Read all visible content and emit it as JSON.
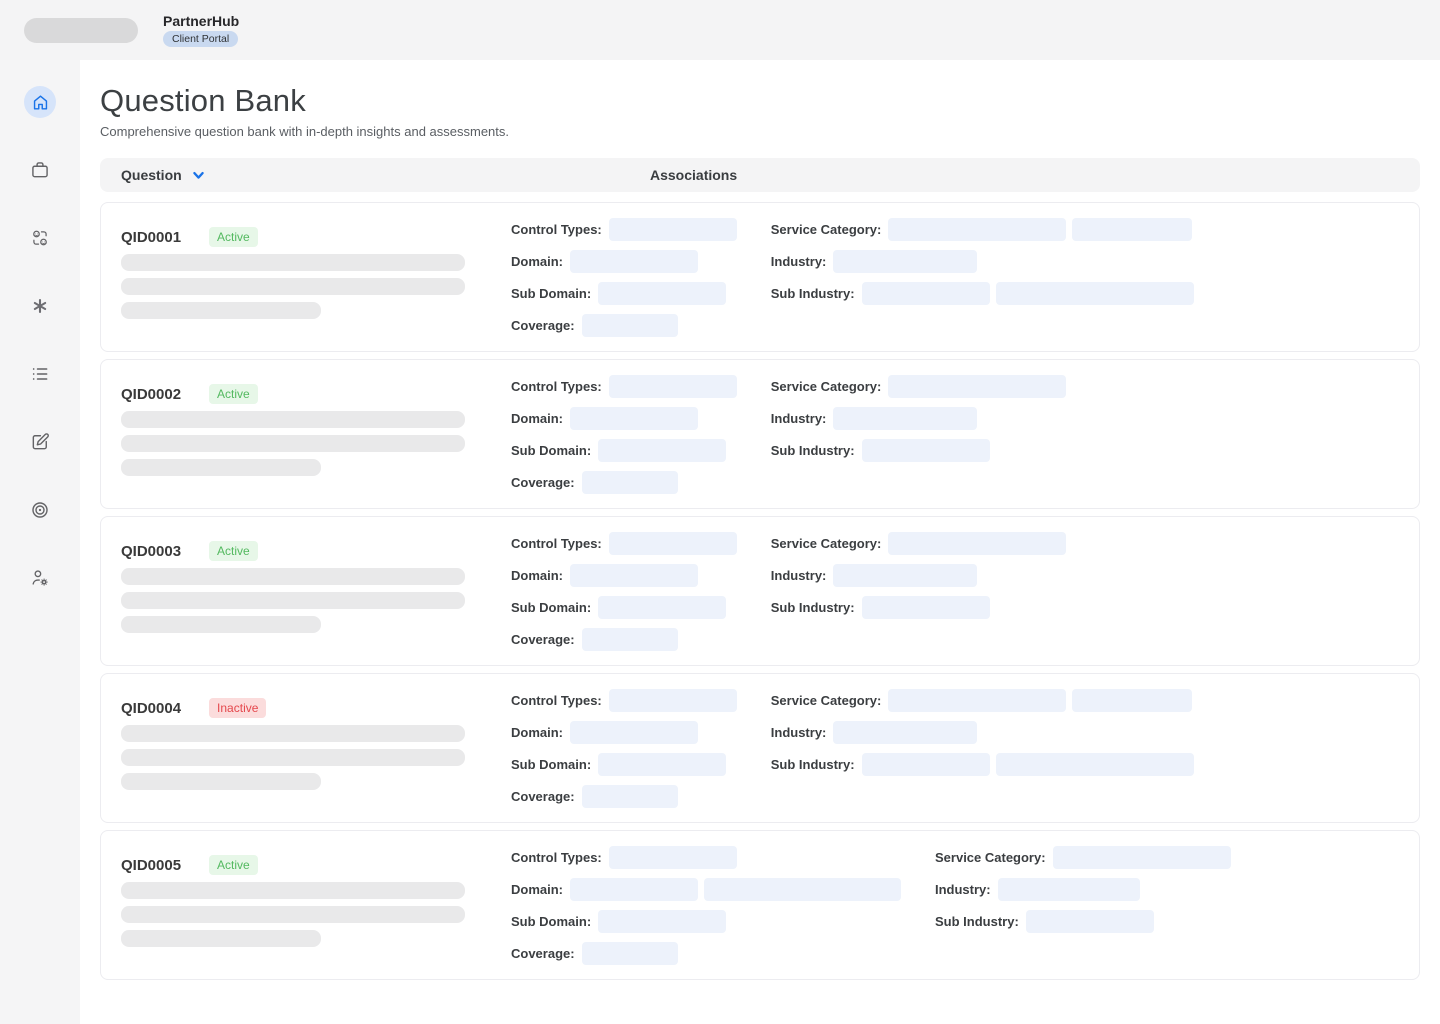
{
  "topbar": {
    "app_name": "PartnerHub",
    "portal_badge": "Client Portal"
  },
  "sidebar": {
    "items": [
      {
        "icon": "home",
        "active": true
      },
      {
        "icon": "briefcase",
        "active": false
      },
      {
        "icon": "user-exchange",
        "active": false
      },
      {
        "icon": "asterisk",
        "active": false
      },
      {
        "icon": "list",
        "active": false
      },
      {
        "icon": "compose",
        "active": false
      },
      {
        "icon": "target",
        "active": false
      },
      {
        "icon": "user-settings",
        "active": false
      }
    ]
  },
  "page": {
    "title": "Question Bank",
    "subtitle": "Comprehensive question bank with in-depth insights and assessments."
  },
  "list_header": {
    "question_label": "Question",
    "associations_label": "Associations"
  },
  "field_labels": {
    "control_types": "Control Types:",
    "domain": "Domain:",
    "sub_domain": "Sub Domain:",
    "coverage": "Coverage:",
    "service_category": "Service Category:",
    "industry": "Industry:",
    "sub_industry": "Sub Industry:"
  },
  "colors": {
    "accent_blue": "#1a73e8",
    "active_green": "#53b95f",
    "active_bg": "#e7f7e8",
    "inactive_red": "#e5484d",
    "inactive_bg": "#fbdcdc",
    "chip_bg": "#edf2fb"
  },
  "questions": [
    {
      "id": "QID0001",
      "status": "Active",
      "skeleton_bars": [
        344,
        344,
        200
      ],
      "associations": {
        "col1": [
          {
            "field": "control_types",
            "chips": [
              128
            ]
          },
          {
            "field": "domain",
            "chips": [
              128
            ]
          },
          {
            "field": "sub_domain",
            "chips": [
              128
            ]
          },
          {
            "field": "coverage",
            "chips": [
              96
            ]
          }
        ],
        "col2": [
          {
            "field": "service_category",
            "chips": [
              178,
              120
            ]
          },
          {
            "field": "industry",
            "chips": [
              144
            ]
          },
          {
            "field": "sub_industry",
            "chips": [
              128,
              198
            ]
          }
        ]
      }
    },
    {
      "id": "QID0002",
      "status": "Active",
      "skeleton_bars": [
        344,
        344,
        200
      ],
      "associations": {
        "col1": [
          {
            "field": "control_types",
            "chips": [
              128
            ]
          },
          {
            "field": "domain",
            "chips": [
              128
            ]
          },
          {
            "field": "sub_domain",
            "chips": [
              128
            ]
          },
          {
            "field": "coverage",
            "chips": [
              96
            ]
          }
        ],
        "col2": [
          {
            "field": "service_category",
            "chips": [
              178
            ]
          },
          {
            "field": "industry",
            "chips": [
              144
            ]
          },
          {
            "field": "sub_industry",
            "chips": [
              128
            ]
          }
        ]
      }
    },
    {
      "id": "QID0003",
      "status": "Active",
      "skeleton_bars": [
        344,
        344,
        200
      ],
      "associations": {
        "col1": [
          {
            "field": "control_types",
            "chips": [
              128
            ]
          },
          {
            "field": "domain",
            "chips": [
              128
            ]
          },
          {
            "field": "sub_domain",
            "chips": [
              128
            ]
          },
          {
            "field": "coverage",
            "chips": [
              96
            ]
          }
        ],
        "col2": [
          {
            "field": "service_category",
            "chips": [
              178
            ]
          },
          {
            "field": "industry",
            "chips": [
              144
            ]
          },
          {
            "field": "sub_industry",
            "chips": [
              128
            ]
          }
        ]
      }
    },
    {
      "id": "QID0004",
      "status": "Inactive",
      "skeleton_bars": [
        344,
        344,
        200
      ],
      "associations": {
        "col1": [
          {
            "field": "control_types",
            "chips": [
              128
            ]
          },
          {
            "field": "domain",
            "chips": [
              128
            ]
          },
          {
            "field": "sub_domain",
            "chips": [
              128
            ]
          },
          {
            "field": "coverage",
            "chips": [
              96
            ]
          }
        ],
        "col2": [
          {
            "field": "service_category",
            "chips": [
              178,
              120
            ]
          },
          {
            "field": "industry",
            "chips": [
              144
            ]
          },
          {
            "field": "sub_industry",
            "chips": [
              128,
              198
            ]
          }
        ]
      }
    },
    {
      "id": "QID0005",
      "status": "Active",
      "skeleton_bars": [
        344,
        344,
        200
      ],
      "associations": {
        "col1": [
          {
            "field": "control_types",
            "chips": [
              128
            ]
          },
          {
            "field": "domain",
            "chips": [
              128,
              197
            ]
          },
          {
            "field": "sub_domain",
            "chips": [
              128
            ]
          },
          {
            "field": "coverage",
            "chips": [
              96
            ]
          }
        ],
        "col2": [
          {
            "field": "service_category",
            "chips": [
              178
            ]
          },
          {
            "field": "industry",
            "chips": [
              142
            ]
          },
          {
            "field": "sub_industry",
            "chips": [
              128
            ]
          }
        ]
      }
    }
  ]
}
